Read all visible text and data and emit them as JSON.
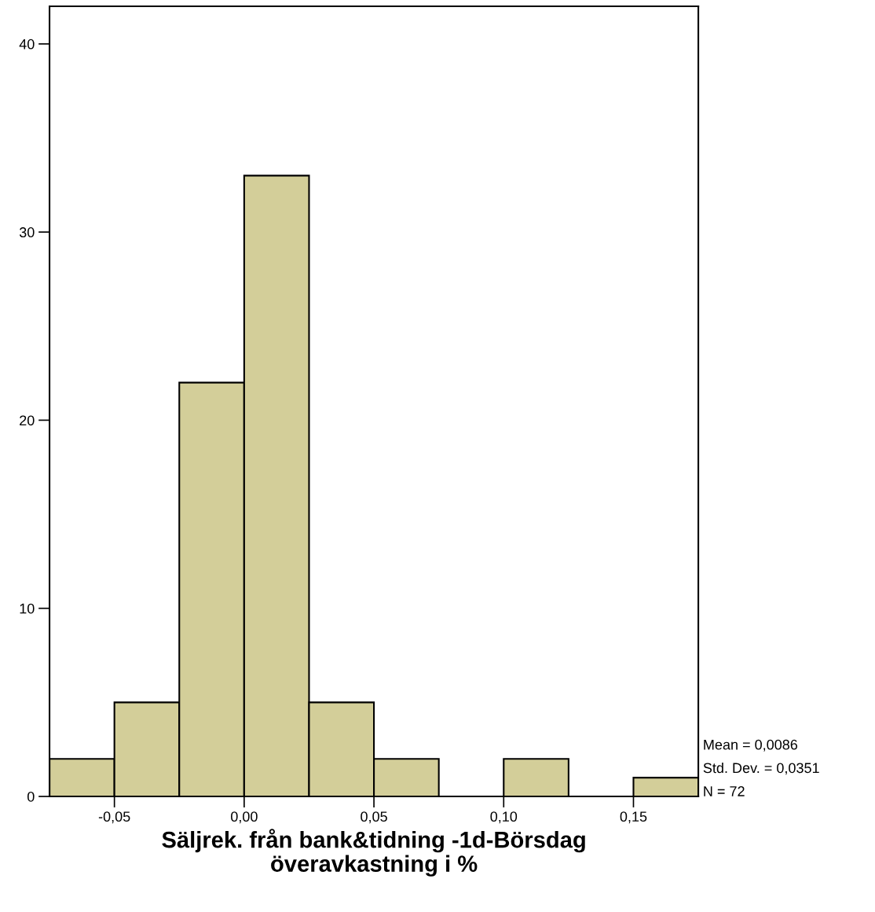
{
  "chart_data": {
    "type": "histogram",
    "xlabel": "Säljrek. från bank&tidning -1d-Börsdag\növeravkastning i %",
    "bins": [
      -0.075,
      -0.05,
      -0.025,
      0,
      0.025,
      0.05,
      0.075,
      0.1,
      0.125,
      0.15,
      0.175
    ],
    "values": [
      2,
      5,
      22,
      33,
      5,
      2,
      0,
      2,
      0,
      1
    ],
    "color": "#d3ce99",
    "xlim": [
      -0.075,
      0.175
    ],
    "xticks": [
      {
        "value": -0.05,
        "label": "-0,05"
      },
      {
        "value": 0,
        "label": "0,00"
      },
      {
        "value": 0.05,
        "label": "0,05"
      },
      {
        "value": 0.1,
        "label": "0,10"
      },
      {
        "value": 0.15,
        "label": "0,15"
      }
    ],
    "ylim": [
      0,
      42
    ],
    "yticks": [
      0,
      10,
      20,
      30,
      40
    ],
    "grid": false,
    "annotations": [
      "Mean = 0,0086",
      "Std. Dev. = 0,0351",
      "N = 72"
    ]
  }
}
